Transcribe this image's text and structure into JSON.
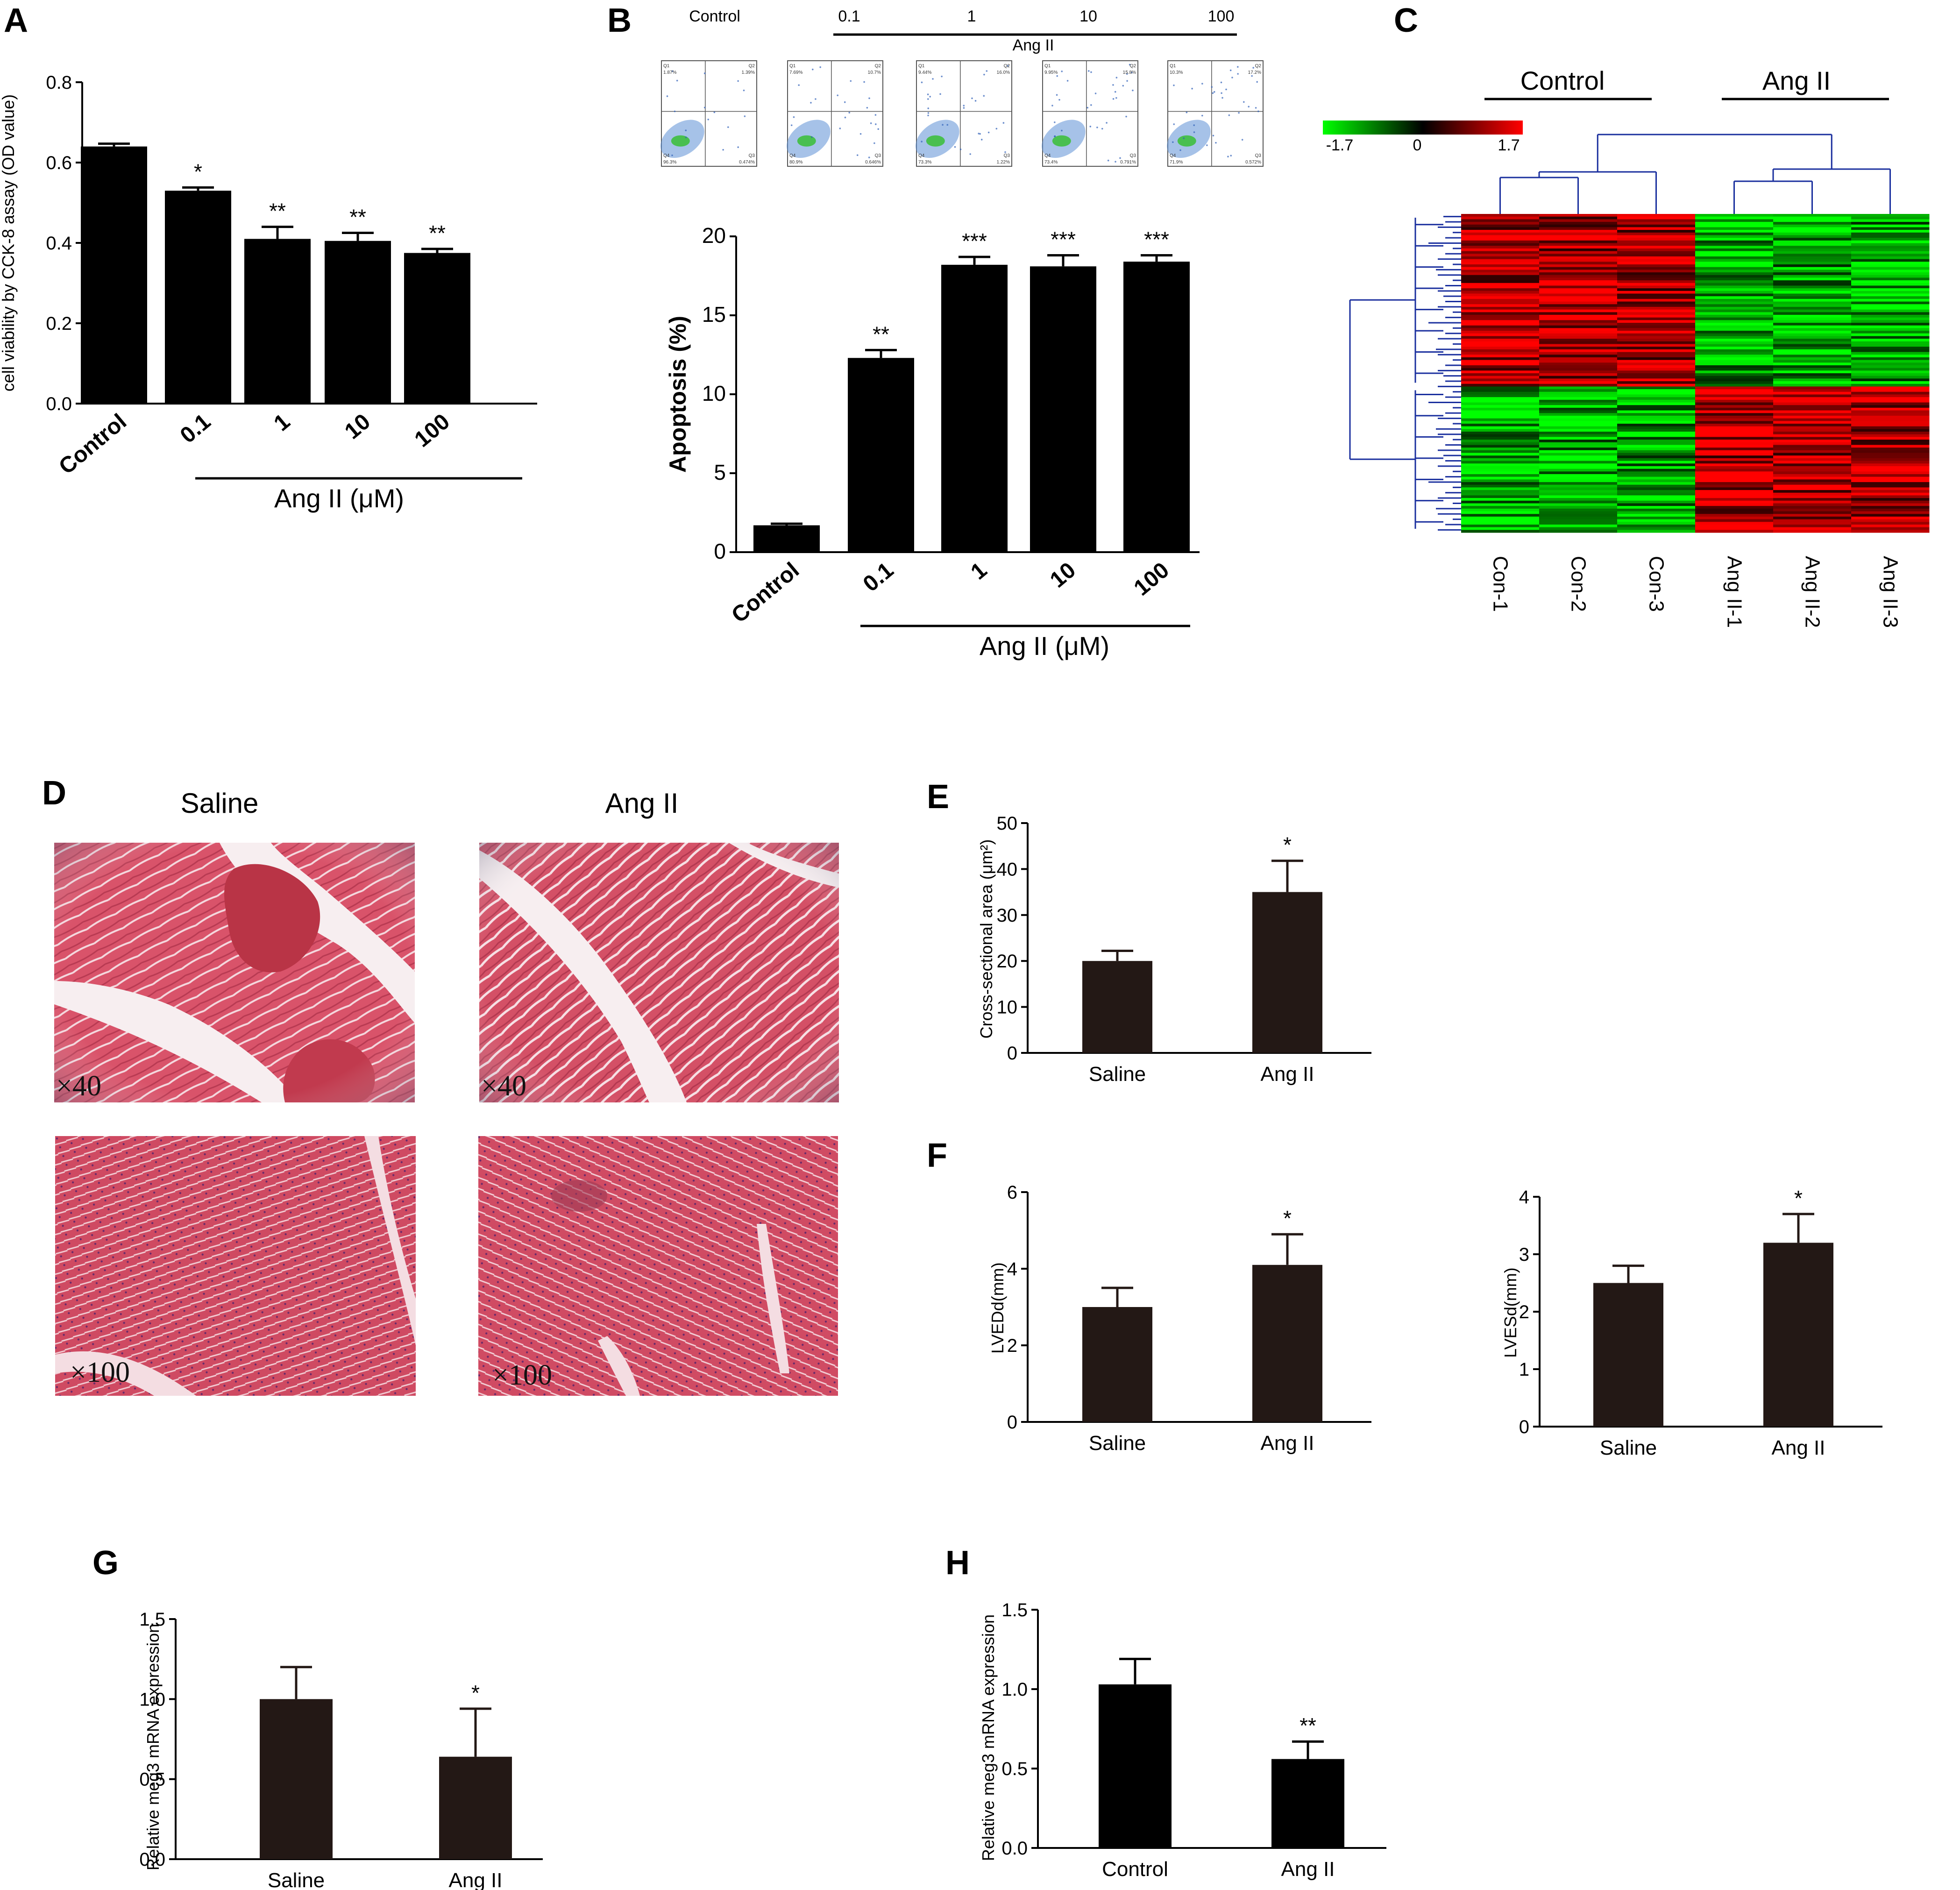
{
  "panels": {
    "A": "A",
    "B": "B",
    "C": "C",
    "D": "D",
    "E": "E",
    "F": "F",
    "G": "G",
    "H": "H"
  },
  "flow": {
    "headers": [
      "Control",
      "0.1",
      "1",
      "10",
      "100"
    ],
    "group_label": "Ang II",
    "quadrant_labels": [
      "Q1",
      "Q2",
      "Q3",
      "Q4"
    ],
    "quadrants": [
      {
        "q1": "1.87%",
        "q2": "1.39%",
        "q3": "0.474%",
        "q4": "96.3%"
      },
      {
        "q1": "7.69%",
        "q2": "10.7%",
        "q3": "0.646%",
        "q4": "80.9%"
      },
      {
        "q1": "9.44%",
        "q2": "16.0%",
        "q3": "1.22%",
        "q4": "73.3%"
      },
      {
        "q1": "9.95%",
        "q2": "15.8%",
        "q3": "0.791%",
        "q4": "73.4%"
      },
      {
        "q1": "10.3%",
        "q2": "17.2%",
        "q3": "0.572%",
        "q4": "71.9%"
      }
    ]
  },
  "heatmap": {
    "group_control": "Control",
    "group_ang": "Ang II",
    "legend_min": "-1.7",
    "legend_mid": "0",
    "legend_max": "1.7",
    "colors": {
      "low": "#00ff00",
      "mid": "#000000",
      "high": "#ff0000",
      "dendrogram": "#1a2f9e"
    },
    "samples": [
      "Con-1",
      "Con-2",
      "Con-3",
      "Ang II-1",
      "Ang II-2",
      "Ang II-3"
    ]
  },
  "histology": {
    "col_saline": "Saline",
    "col_ang": "Ang II",
    "mag_low": "×40",
    "mag_high": "×100",
    "colors": {
      "tissue": "#d9536a",
      "tissue_dark": "#c23a52",
      "background": "#f2e6ea"
    }
  },
  "chart_data": [
    {
      "panel": "A",
      "type": "bar",
      "categories": [
        "Control",
        "0.1",
        "1",
        "10",
        "100"
      ],
      "values": [
        0.64,
        0.53,
        0.41,
        0.405,
        0.375
      ],
      "errors": [
        0.007,
        0.008,
        0.03,
        0.02,
        0.01
      ],
      "sig": [
        "",
        "*",
        "**",
        "**",
        "**"
      ],
      "ylabel": "cell viability by CCK-8 assay (OD value)",
      "group_label": "Ang II (μM)",
      "ylim": [
        0,
        0.8
      ],
      "yticks": [
        "0.0",
        "0.2",
        "0.4",
        "0.6",
        "0.8"
      ],
      "bar_color": "#000000"
    },
    {
      "panel": "B",
      "type": "bar",
      "categories": [
        "Control",
        "0.1",
        "1",
        "10",
        "100"
      ],
      "values": [
        1.7,
        12.3,
        18.2,
        18.1,
        18.4
      ],
      "errors": [
        0.1,
        0.5,
        0.5,
        0.7,
        0.4
      ],
      "sig": [
        "",
        "**",
        "***",
        "***",
        "***"
      ],
      "ylabel": "Apoptosis (%)",
      "group_label": "Ang II (μM)",
      "ylim": [
        0,
        20
      ],
      "yticks": [
        "0",
        "5",
        "10",
        "15",
        "20"
      ],
      "bar_color": "#000000"
    },
    {
      "panel": "E",
      "type": "bar",
      "categories": [
        "Saline",
        "Ang II"
      ],
      "values": [
        20,
        35
      ],
      "errors": [
        2.2,
        6.8
      ],
      "sig": [
        "",
        "*"
      ],
      "ylabel": "Cross-sectional area (μm²)",
      "ylim": [
        0,
        50
      ],
      "yticks": [
        "0",
        "10",
        "20",
        "30",
        "40",
        "50"
      ],
      "bar_color": "#231815"
    },
    {
      "panel": "F1",
      "type": "bar",
      "categories": [
        "Saline",
        "Ang II"
      ],
      "values": [
        3.0,
        4.1
      ],
      "errors": [
        0.5,
        0.8
      ],
      "sig": [
        "",
        "*"
      ],
      "ylabel": "LVEDd(mm)",
      "ylim": [
        0,
        6
      ],
      "yticks": [
        "0",
        "2",
        "4",
        "6"
      ],
      "bar_color": "#231815"
    },
    {
      "panel": "F2",
      "type": "bar",
      "categories": [
        "Saline",
        "Ang II"
      ],
      "values": [
        2.5,
        3.2
      ],
      "errors": [
        0.3,
        0.5
      ],
      "sig": [
        "",
        "*"
      ],
      "ylabel": "LVESd(mm)",
      "ylim": [
        0,
        4
      ],
      "yticks": [
        "0",
        "1",
        "2",
        "3",
        "4"
      ],
      "bar_color": "#231815"
    },
    {
      "panel": "G",
      "type": "bar",
      "categories": [
        "Saline",
        "Ang II"
      ],
      "values": [
        1.0,
        0.64
      ],
      "errors": [
        0.2,
        0.3
      ],
      "sig": [
        "",
        "*"
      ],
      "ylabel": "Relative meg3 mRNA expression",
      "ylim": [
        0,
        1.5
      ],
      "yticks": [
        "0.0",
        "0.5",
        "1.0",
        "1.5"
      ],
      "bar_color": "#231815"
    },
    {
      "panel": "H",
      "type": "bar",
      "categories": [
        "Control",
        "Ang II"
      ],
      "values": [
        1.03,
        0.56
      ],
      "errors": [
        0.16,
        0.11
      ],
      "sig": [
        "",
        "**"
      ],
      "ylabel": "Relative meg3 mRNA expression",
      "ylim": [
        0,
        1.5
      ],
      "yticks": [
        "0.0",
        "0.5",
        "1.0",
        "1.5"
      ],
      "bar_color": "#000000"
    }
  ]
}
